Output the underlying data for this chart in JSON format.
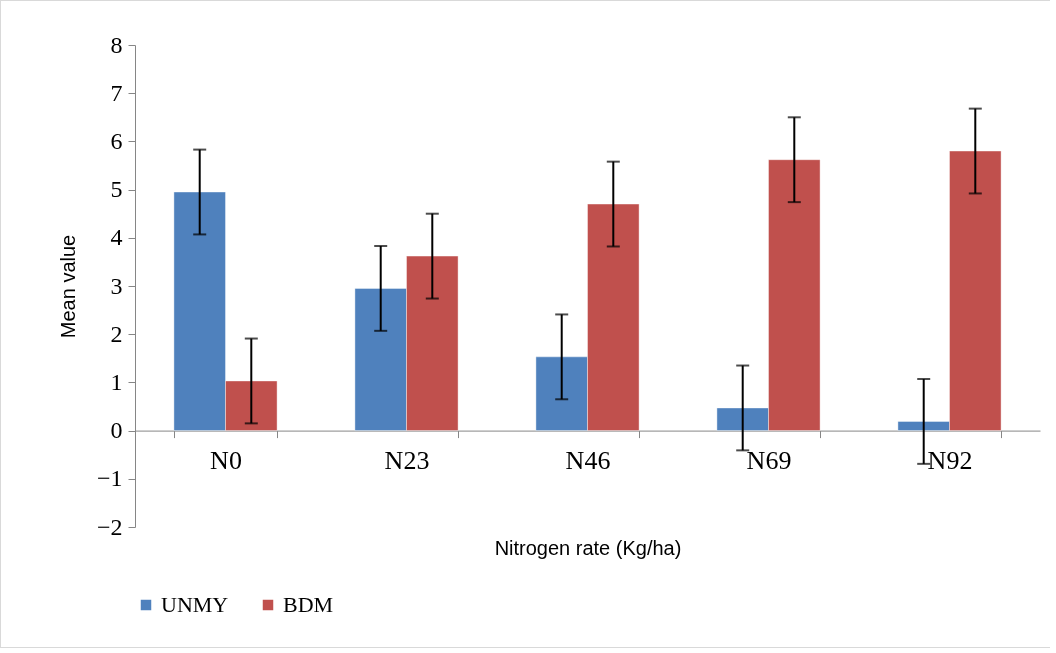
{
  "chart_data": {
    "type": "bar",
    "xlabel": "Nitrogen rate (Kg/ha)",
    "ylabel": "Mean value",
    "categories": [
      "N0",
      "N23",
      "N46",
      "N69",
      "N92"
    ],
    "series": [
      {
        "name": "UNMY",
        "color": "#4f81bd",
        "values": [
          4.95,
          2.95,
          1.53,
          0.47,
          0.19
        ],
        "errors": [
          0.88,
          0.88,
          0.88,
          0.88,
          0.88
        ]
      },
      {
        "name": "BDM",
        "color": "#c0504d",
        "values": [
          1.03,
          3.62,
          4.7,
          5.62,
          5.8
        ],
        "errors": [
          0.88,
          0.88,
          0.88,
          0.88,
          0.88
        ]
      }
    ],
    "ylim": [
      -2,
      8
    ],
    "yticks": [
      -2,
      -1,
      0,
      1,
      2,
      3,
      4,
      5,
      6,
      7,
      8
    ],
    "legend": "bottom"
  }
}
